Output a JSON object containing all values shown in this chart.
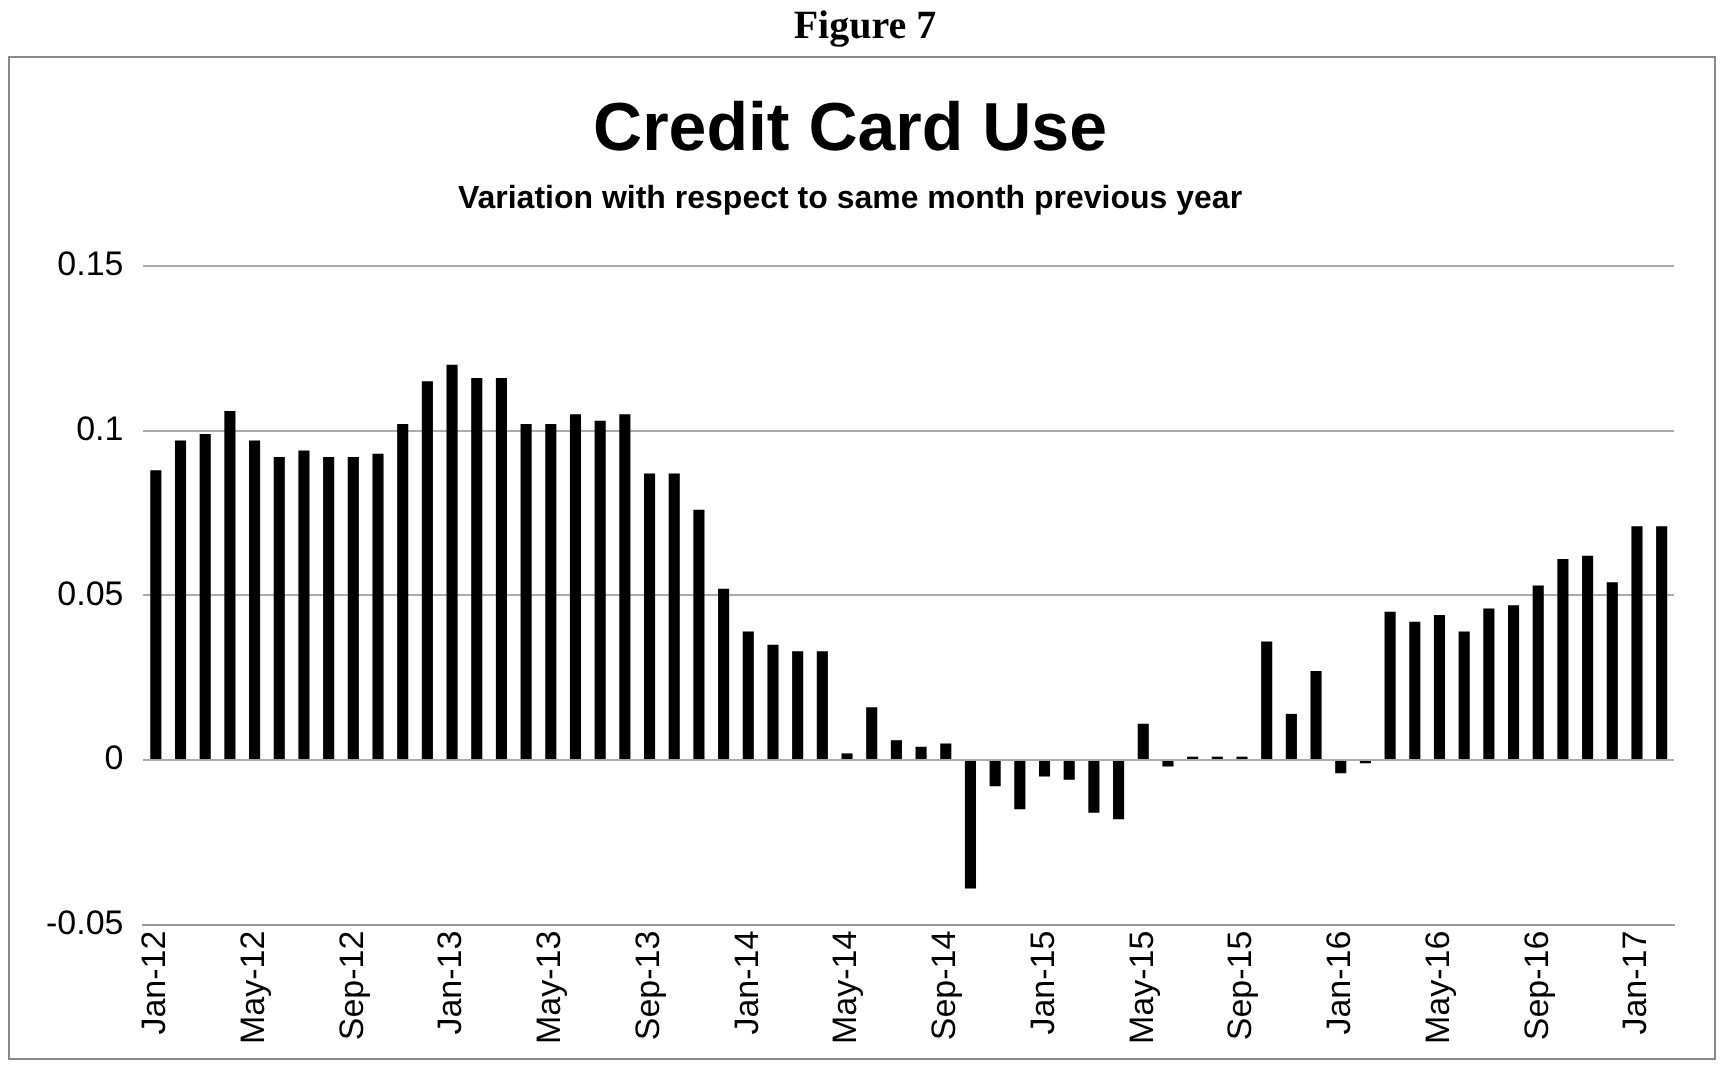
{
  "chart_data": {
    "type": "bar",
    "title": "Credit Card Use",
    "subtitle": "Variation with respect to same month previous year",
    "annotations": [
      "Figure 7"
    ],
    "categories": [
      "Jan-12",
      null,
      null,
      null,
      "May-12",
      null,
      null,
      null,
      "Sep-12",
      null,
      null,
      null,
      "Jan-13",
      null,
      null,
      null,
      "May-13",
      null,
      null,
      null,
      "Sep-13",
      null,
      null,
      null,
      "Jan-14",
      null,
      null,
      null,
      "May-14",
      null,
      null,
      null,
      "Sep-14",
      null,
      null,
      null,
      "Jan-15",
      null,
      null,
      null,
      "May-15",
      null,
      null,
      null,
      "Sep-15",
      null,
      null,
      null,
      "Jan-16",
      null,
      null,
      null,
      "May-16",
      null,
      null,
      null,
      "Sep-16",
      null,
      null,
      null,
      "Jan-17",
      null
    ],
    "values": [
      0.088,
      0.097,
      0.099,
      0.106,
      0.097,
      0.092,
      0.094,
      0.092,
      0.092,
      0.093,
      0.102,
      0.115,
      0.12,
      0.116,
      0.116,
      0.102,
      0.102,
      0.105,
      0.103,
      0.105,
      0.087,
      0.087,
      0.076,
      0.052,
      0.039,
      0.035,
      0.033,
      0.033,
      0.002,
      0.016,
      0.006,
      0.004,
      0.005,
      -0.039,
      -0.008,
      -0.015,
      -0.005,
      -0.006,
      -0.016,
      -0.018,
      0.011,
      -0.002,
      0.001,
      0.001,
      0.001,
      0.036,
      0.014,
      0.027,
      -0.004,
      -0.001,
      0.045,
      0.042,
      0.044,
      0.039,
      0.046,
      0.047,
      0.053,
      0.061,
      0.062,
      0.054,
      0.071,
      0.071
    ],
    "color": "#000000",
    "ylim": [
      -0.05,
      0.15
    ],
    "yticks": [
      -0.05,
      0,
      0.05,
      0.1,
      0.15
    ],
    "grid": "y",
    "legend": false
  }
}
